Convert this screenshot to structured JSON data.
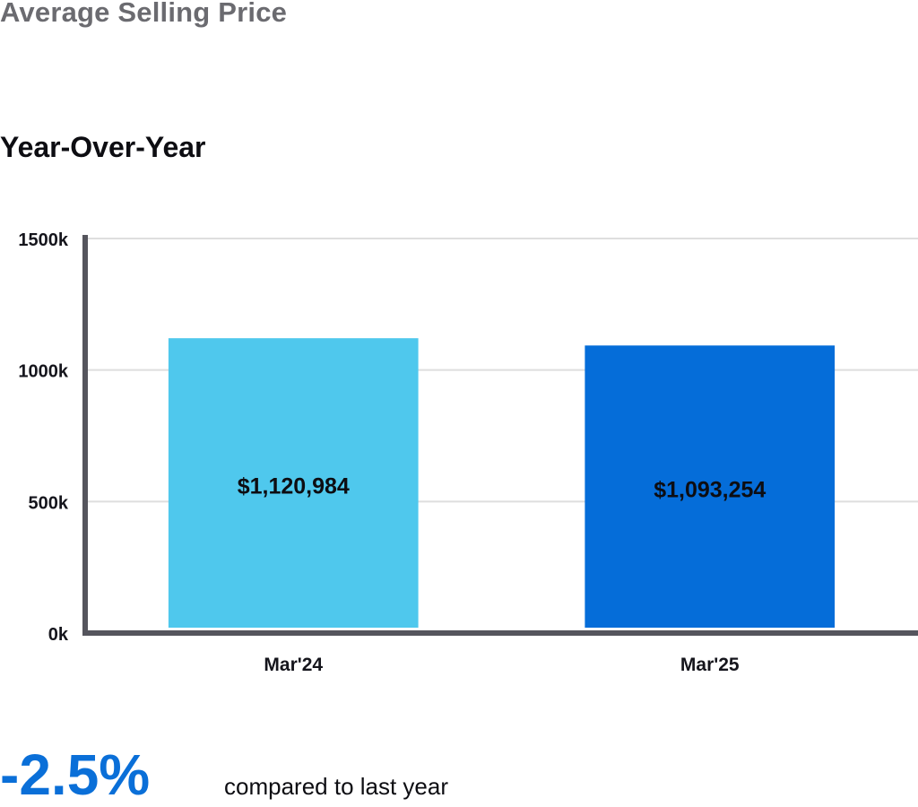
{
  "header": {
    "title": "Average Selling Price"
  },
  "chart_data": {
    "type": "bar",
    "title": "Year-Over-Year",
    "xlabel": "",
    "ylabel": "",
    "categories": [
      "Mar'24",
      "Mar'25"
    ],
    "values": [
      1120984,
      1093254
    ],
    "data_labels": [
      "$1,120,984",
      "$1,093,254"
    ],
    "bar_colors": [
      "#4fc8ed",
      "#056dd9"
    ],
    "ylim": [
      0,
      1500000
    ],
    "y_ticks": [
      0,
      500000,
      1000000,
      1500000
    ],
    "y_tick_labels": [
      "0k",
      "500k",
      "1000k",
      "1500k"
    ],
    "grid": true,
    "legend": "none"
  },
  "summary": {
    "change_value": "-2.5%",
    "change_caption": "compared to last year",
    "change_color": "#0a6fd8"
  }
}
